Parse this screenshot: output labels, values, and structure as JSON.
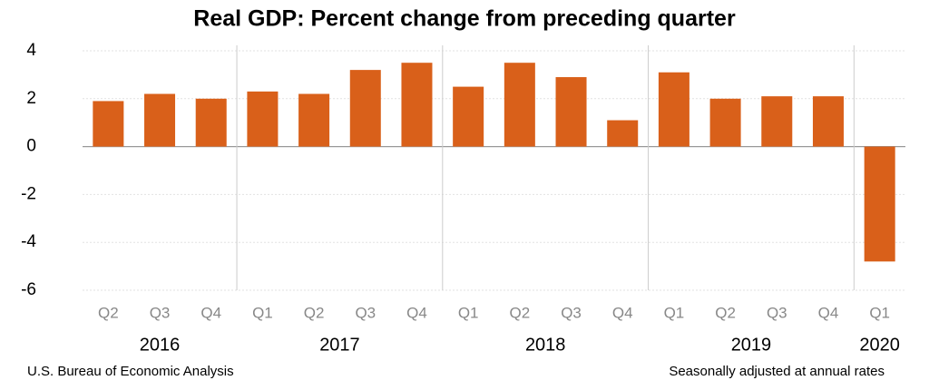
{
  "chart_data": {
    "type": "bar",
    "title": "Real GDP:  Percent change from preceding quarter",
    "groups": [
      {
        "name": "2016",
        "categories": [
          "Q2",
          "Q3",
          "Q4"
        ]
      },
      {
        "name": "2017",
        "categories": [
          "Q1",
          "Q2",
          "Q3",
          "Q4"
        ]
      },
      {
        "name": "2018",
        "categories": [
          "Q1",
          "Q2",
          "Q3",
          "Q4"
        ]
      },
      {
        "name": "2019",
        "categories": [
          "Q1",
          "Q2",
          "Q3",
          "Q4"
        ]
      },
      {
        "name": "2020",
        "categories": [
          "Q1"
        ]
      }
    ],
    "values": [
      1.9,
      2.2,
      2.0,
      2.3,
      2.2,
      3.2,
      3.5,
      2.5,
      3.5,
      2.9,
      1.1,
      3.1,
      2.0,
      2.1,
      2.1,
      -4.8
    ],
    "color": "#d9601a",
    "ylim": [
      -6,
      4
    ],
    "yticks": [
      -6,
      -4,
      -2,
      0,
      2,
      4
    ],
    "grid": true,
    "source": "U.S. Bureau of Economic Analysis",
    "note": "Seasonally adjusted at annual rates"
  }
}
